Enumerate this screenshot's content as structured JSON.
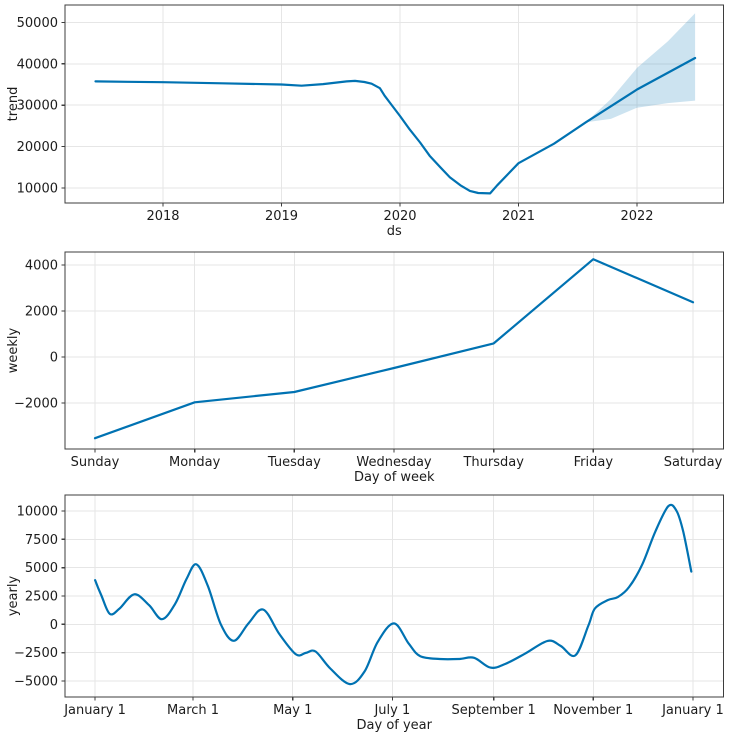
{
  "figure": {
    "background": "#ffffff",
    "colors": {
      "line": "#0072B2",
      "band": "rgba(0, 114, 178, 0.2)",
      "grid": "#e6e6e6",
      "spine": "#3d3d3d",
      "text": "#1c1c1c"
    }
  },
  "chart_data": [
    {
      "id": "trend",
      "type": "line",
      "title": "",
      "xlabel": "ds",
      "ylabel": "trend",
      "grid": true,
      "legend": "none",
      "xlim": [
        2017.173,
        2022.73
      ],
      "ylim": [
        6380,
        54200
      ],
      "x_ticks": [
        {
          "v": 2018,
          "label": "2018"
        },
        {
          "v": 2019,
          "label": "2019"
        },
        {
          "v": 2020,
          "label": "2020"
        },
        {
          "v": 2021,
          "label": "2021"
        },
        {
          "v": 2022,
          "label": "2022"
        }
      ],
      "y_ticks": [
        {
          "v": 10000,
          "label": "10000"
        },
        {
          "v": 20000,
          "label": "20000"
        },
        {
          "v": 30000,
          "label": "30000"
        },
        {
          "v": 40000,
          "label": "40000"
        },
        {
          "v": 50000,
          "label": "50000"
        }
      ],
      "smooth": false,
      "series": [
        {
          "name": "trend",
          "x": [
            2017.43,
            2017.7,
            2018.0,
            2018.5,
            2019.0,
            2019.17,
            2019.35,
            2019.55,
            2019.62,
            2019.7,
            2019.76,
            2019.83,
            2019.87,
            2019.92,
            2020.0,
            2020.08,
            2020.17,
            2020.25,
            2020.34,
            2020.42,
            2020.51,
            2020.59,
            2020.66,
            2020.76,
            2020.82,
            2021.0,
            2021.3,
            2021.57,
            2022.0,
            2022.49
          ],
          "y": [
            35750,
            35650,
            35550,
            35300,
            35000,
            34700,
            35100,
            35750,
            35880,
            35600,
            35200,
            34100,
            32300,
            30400,
            27400,
            24200,
            21000,
            17800,
            15000,
            12600,
            10650,
            9300,
            8800,
            8700,
            10650,
            16000,
            20700,
            25900,
            33800,
            41400
          ]
        }
      ],
      "band": {
        "x": [
          2021.57,
          2021.78,
          2022.0,
          2022.26,
          2022.49
        ],
        "upper": [
          25900,
          31500,
          39000,
          45400,
          52200
        ],
        "lower": [
          25900,
          26700,
          29400,
          30500,
          31100
        ]
      }
    },
    {
      "id": "weekly",
      "type": "line",
      "title": "",
      "xlabel": "Day of week",
      "ylabel": "weekly",
      "grid": true,
      "legend": "none",
      "xlim": [
        -0.301,
        6.306
      ],
      "ylim": [
        -4000,
        4565
      ],
      "x_ticks": [
        {
          "v": 0,
          "label": "Sunday"
        },
        {
          "v": 1,
          "label": "Monday"
        },
        {
          "v": 2,
          "label": "Tuesday"
        },
        {
          "v": 3,
          "label": "Wednesday"
        },
        {
          "v": 4,
          "label": "Thursday"
        },
        {
          "v": 5,
          "label": "Friday"
        },
        {
          "v": 6,
          "label": "Saturday"
        }
      ],
      "y_ticks": [
        {
          "v": -2000,
          "label": "−2000"
        },
        {
          "v": 0,
          "label": "0"
        },
        {
          "v": 2000,
          "label": "2000"
        },
        {
          "v": 4000,
          "label": "4000"
        }
      ],
      "smooth": false,
      "series": [
        {
          "name": "weekly",
          "x": [
            0,
            1,
            2,
            3,
            4,
            5,
            6
          ],
          "y": [
            -3530,
            -1970,
            -1520,
            -480,
            590,
            4250,
            2380
          ]
        }
      ]
    },
    {
      "id": "yearly",
      "type": "line",
      "title": "",
      "xlabel": "Day of year",
      "ylabel": "yearly",
      "grid": true,
      "legend": "none",
      "xlim": [
        -17.4,
        385.7
      ],
      "ylim": [
        -6410,
        11410
      ],
      "x_ticks": [
        {
          "v": 1,
          "label": "January 1"
        },
        {
          "v": 61,
          "label": "March 1"
        },
        {
          "v": 122,
          "label": "May 1"
        },
        {
          "v": 183,
          "label": "July 1"
        },
        {
          "v": 245,
          "label": "September 1"
        },
        {
          "v": 306,
          "label": "November 1"
        },
        {
          "v": 367,
          "label": "January 1"
        }
      ],
      "y_ticks": [
        {
          "v": -5000,
          "label": "−5000"
        },
        {
          "v": -2500,
          "label": "−2500"
        },
        {
          "v": 0,
          "label": "0"
        },
        {
          "v": 2500,
          "label": "2500"
        },
        {
          "v": 5000,
          "label": "5000"
        },
        {
          "v": 7500,
          "label": "7500"
        },
        {
          "v": 10000,
          "label": "10000"
        }
      ],
      "smooth": true,
      "series": [
        {
          "name": "yearly",
          "x": [
            1,
            5,
            10,
            16,
            25,
            34,
            42,
            50,
            57,
            63,
            70,
            78,
            86,
            95,
            104,
            114,
            124,
            130,
            136,
            145,
            157,
            166,
            174,
            184,
            193,
            200,
            212,
            224,
            233,
            243,
            252,
            264,
            278,
            286,
            295,
            303,
            307,
            315,
            321,
            328,
            336,
            344,
            352,
            357,
            361,
            366
          ],
          "y": [
            3900,
            2500,
            920,
            1400,
            2650,
            1700,
            450,
            1800,
            4000,
            5300,
            3400,
            0,
            -1450,
            100,
            1300,
            -900,
            -2650,
            -2520,
            -2400,
            -3900,
            -5270,
            -4150,
            -1550,
            80,
            -1700,
            -2800,
            -3060,
            -3060,
            -2950,
            -3820,
            -3500,
            -2600,
            -1460,
            -1900,
            -2740,
            -100,
            1400,
            2150,
            2400,
            3300,
            5300,
            8200,
            10430,
            10000,
            8200,
            4650
          ]
        }
      ]
    }
  ]
}
